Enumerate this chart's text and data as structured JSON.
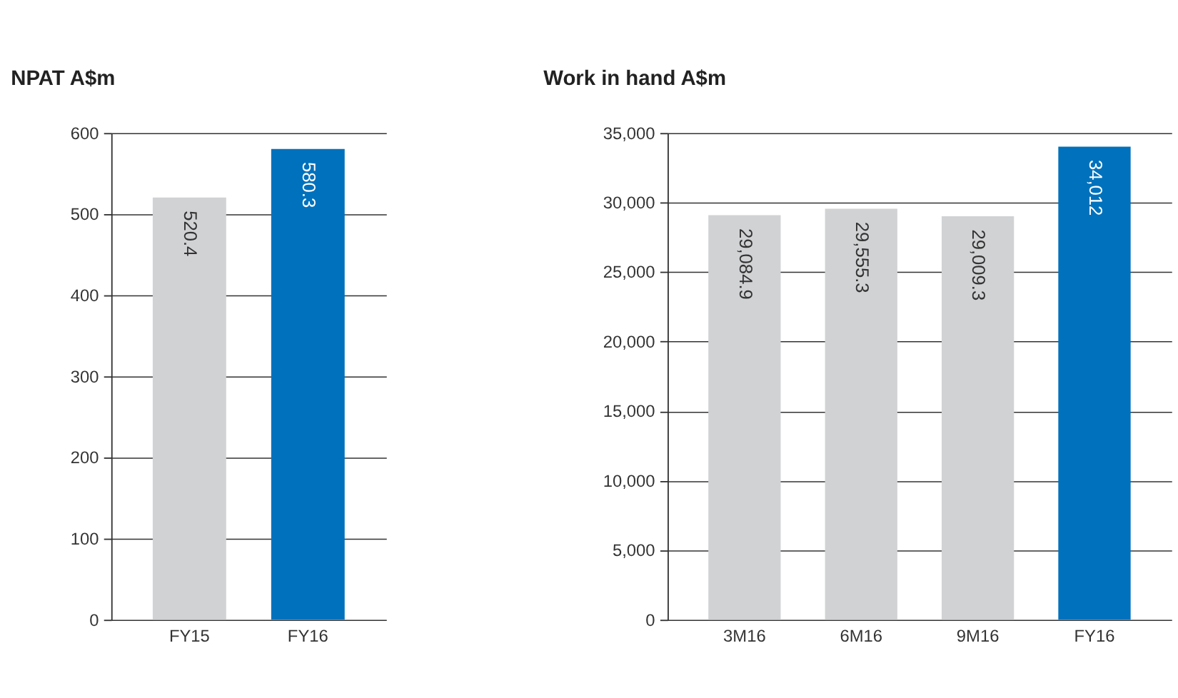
{
  "chart_data": [
    {
      "type": "bar",
      "title": "NPAT A$m",
      "categories": [
        "FY15",
        "FY16"
      ],
      "values": [
        520.4,
        580.3
      ],
      "colors": [
        "#d1d2d4",
        "#0071bc"
      ],
      "ylim": [
        0,
        600
      ],
      "yticks": [
        0,
        100,
        200,
        300,
        400,
        500,
        600
      ],
      "grid": "y",
      "data_labels": true
    },
    {
      "type": "bar",
      "title": "Work in hand A$m",
      "categories": [
        "3M16",
        "6M16",
        "9M16",
        "FY16"
      ],
      "values": [
        29084.9,
        29555.3,
        29009.3,
        34012
      ],
      "colors": [
        "#d1d2d4",
        "#d1d2d4",
        "#d1d2d4",
        "#0071bc"
      ],
      "value_labels": [
        "29,084.9",
        "29,555.3",
        "29,009.3",
        "34,012"
      ],
      "ylim": [
        0,
        35000
      ],
      "yticks": [
        0,
        {
          "value": 5000,
          "label": "5,000"
        },
        {
          "value": 10000,
          "label": "10,000"
        },
        {
          "value": 15000,
          "label": "15,000"
        },
        {
          "value": 20000,
          "label": "20,000"
        },
        {
          "value": 25000,
          "label": "25,000"
        },
        {
          "value": 30000,
          "label": "30,000"
        },
        {
          "value": 35000,
          "label": "35,000"
        }
      ],
      "grid": "y"
    }
  ]
}
